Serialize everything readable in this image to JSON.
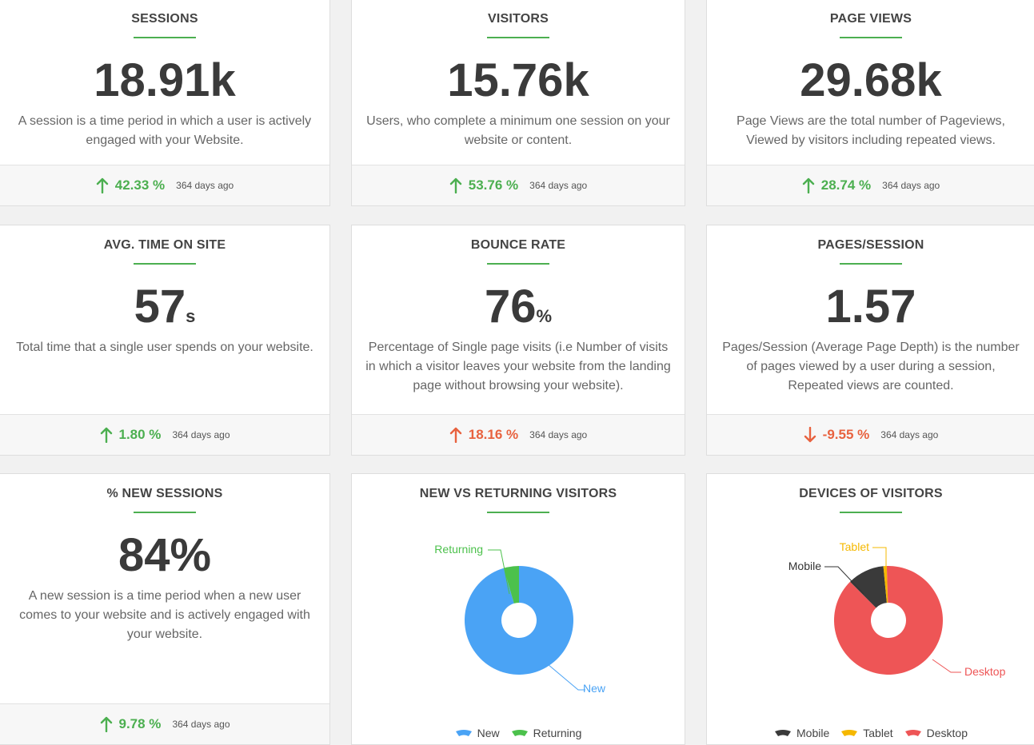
{
  "colors": {
    "green": "#4caf50",
    "red": "#e8623f",
    "blue": "#4aa3f5",
    "pie_green": "#4cc14c",
    "black": "#3a3a3a",
    "yellow": "#f5b800",
    "coral": "#ee5556"
  },
  "cards": [
    {
      "title": "SESSIONS",
      "value": "18.91k",
      "unit": "",
      "desc": "A session is a time period in which a user is actively engaged with your Website.",
      "change": "42.33 %",
      "trend": "up",
      "ago": "364 days ago"
    },
    {
      "title": "VISITORS",
      "value": "15.76k",
      "unit": "",
      "desc": "Users, who complete a minimum one session on your website or content.",
      "change": "53.76 %",
      "trend": "up",
      "ago": "364 days ago"
    },
    {
      "title": "PAGE VIEWS",
      "value": "29.68k",
      "unit": "",
      "desc": "Page Views are the total number of Pageviews, Viewed by visitors including repeated views.",
      "change": "28.74 %",
      "trend": "up",
      "ago": "364 days ago"
    },
    {
      "title": "AVG. TIME ON SITE",
      "value": "57",
      "unit": "s",
      "desc": "Total time that a single user spends on your website.",
      "change": "1.80 %",
      "trend": "up",
      "ago": "364 days ago"
    },
    {
      "title": "BOUNCE RATE",
      "value": "76",
      "unit": "%",
      "desc": "Percentage of Single page visits (i.e Number of visits in which a visitor leaves your website from the landing page without browsing your website).",
      "change": "18.16 %",
      "trend": "up-red",
      "ago": "364 days ago"
    },
    {
      "title": "PAGES/SESSION",
      "value": "1.57",
      "unit": "",
      "desc": "Pages/Session (Average Page Depth) is the number of pages viewed by a user during a session, Repeated views are counted.",
      "change": "-9.55 %",
      "trend": "down",
      "ago": "364 days ago"
    },
    {
      "title": "% NEW SESSIONS",
      "value": "84%",
      "unit": "",
      "desc": "A new session is a time period when a new user comes to your website and is actively engaged with your website.",
      "change": "9.78 %",
      "trend": "up",
      "ago": "364 days ago"
    }
  ],
  "chart_data": [
    {
      "type": "pie",
      "title": "NEW VS RETURNING VISITORS",
      "categories": [
        "New",
        "Returning"
      ],
      "values": [
        84,
        4
      ],
      "legend": [
        "New",
        "Returning"
      ],
      "legend_position": "bottom"
    },
    {
      "type": "pie",
      "title": "DEVICES OF VISITORS",
      "categories": [
        "Mobile",
        "Tablet",
        "Desktop"
      ],
      "values": [
        11,
        1,
        88
      ],
      "legend": [
        "Mobile",
        "Tablet",
        "Desktop"
      ],
      "legend_position": "bottom"
    }
  ]
}
